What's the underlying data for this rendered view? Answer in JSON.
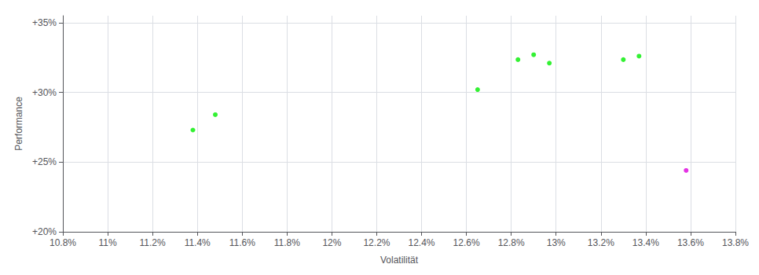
{
  "chart_data": {
    "type": "scatter",
    "xlabel": "Volatilität",
    "ylabel": "Performance",
    "xlim": [
      0.108,
      0.138
    ],
    "ylim": [
      0.2,
      0.355
    ],
    "xticks": [
      {
        "value": 0.108,
        "label": "10.8%"
      },
      {
        "value": 0.11,
        "label": "11%"
      },
      {
        "value": 0.112,
        "label": "11.2%"
      },
      {
        "value": 0.114,
        "label": "11.4%"
      },
      {
        "value": 0.116,
        "label": "11.6%"
      },
      {
        "value": 0.118,
        "label": "11.8%"
      },
      {
        "value": 0.12,
        "label": "12%"
      },
      {
        "value": 0.122,
        "label": "12.2%"
      },
      {
        "value": 0.124,
        "label": "12.4%"
      },
      {
        "value": 0.126,
        "label": "12.6%"
      },
      {
        "value": 0.128,
        "label": "12.8%"
      },
      {
        "value": 0.13,
        "label": "13%"
      },
      {
        "value": 0.132,
        "label": "13.2%"
      },
      {
        "value": 0.134,
        "label": "13.4%"
      },
      {
        "value": 0.136,
        "label": "13.6%"
      },
      {
        "value": 0.138,
        "label": "13.8%"
      }
    ],
    "yticks": [
      {
        "value": 0.2,
        "label": "+20%"
      },
      {
        "value": 0.25,
        "label": "+25%"
      },
      {
        "value": 0.3,
        "label": "+30%"
      },
      {
        "value": 0.35,
        "label": "+35%"
      }
    ],
    "grid": true,
    "series": [
      {
        "color": "#00ee00",
        "x": [
          0.1138,
          0.1148,
          0.1265,
          0.1283,
          0.129,
          0.1297,
          0.133,
          0.1337
        ],
        "values": [
          0.273,
          0.284,
          0.302,
          0.3235,
          0.327,
          0.321,
          0.3235,
          0.326
        ]
      },
      {
        "color": "#dd00dd",
        "x": [
          0.1358
        ],
        "values": [
          0.244
        ]
      }
    ]
  }
}
